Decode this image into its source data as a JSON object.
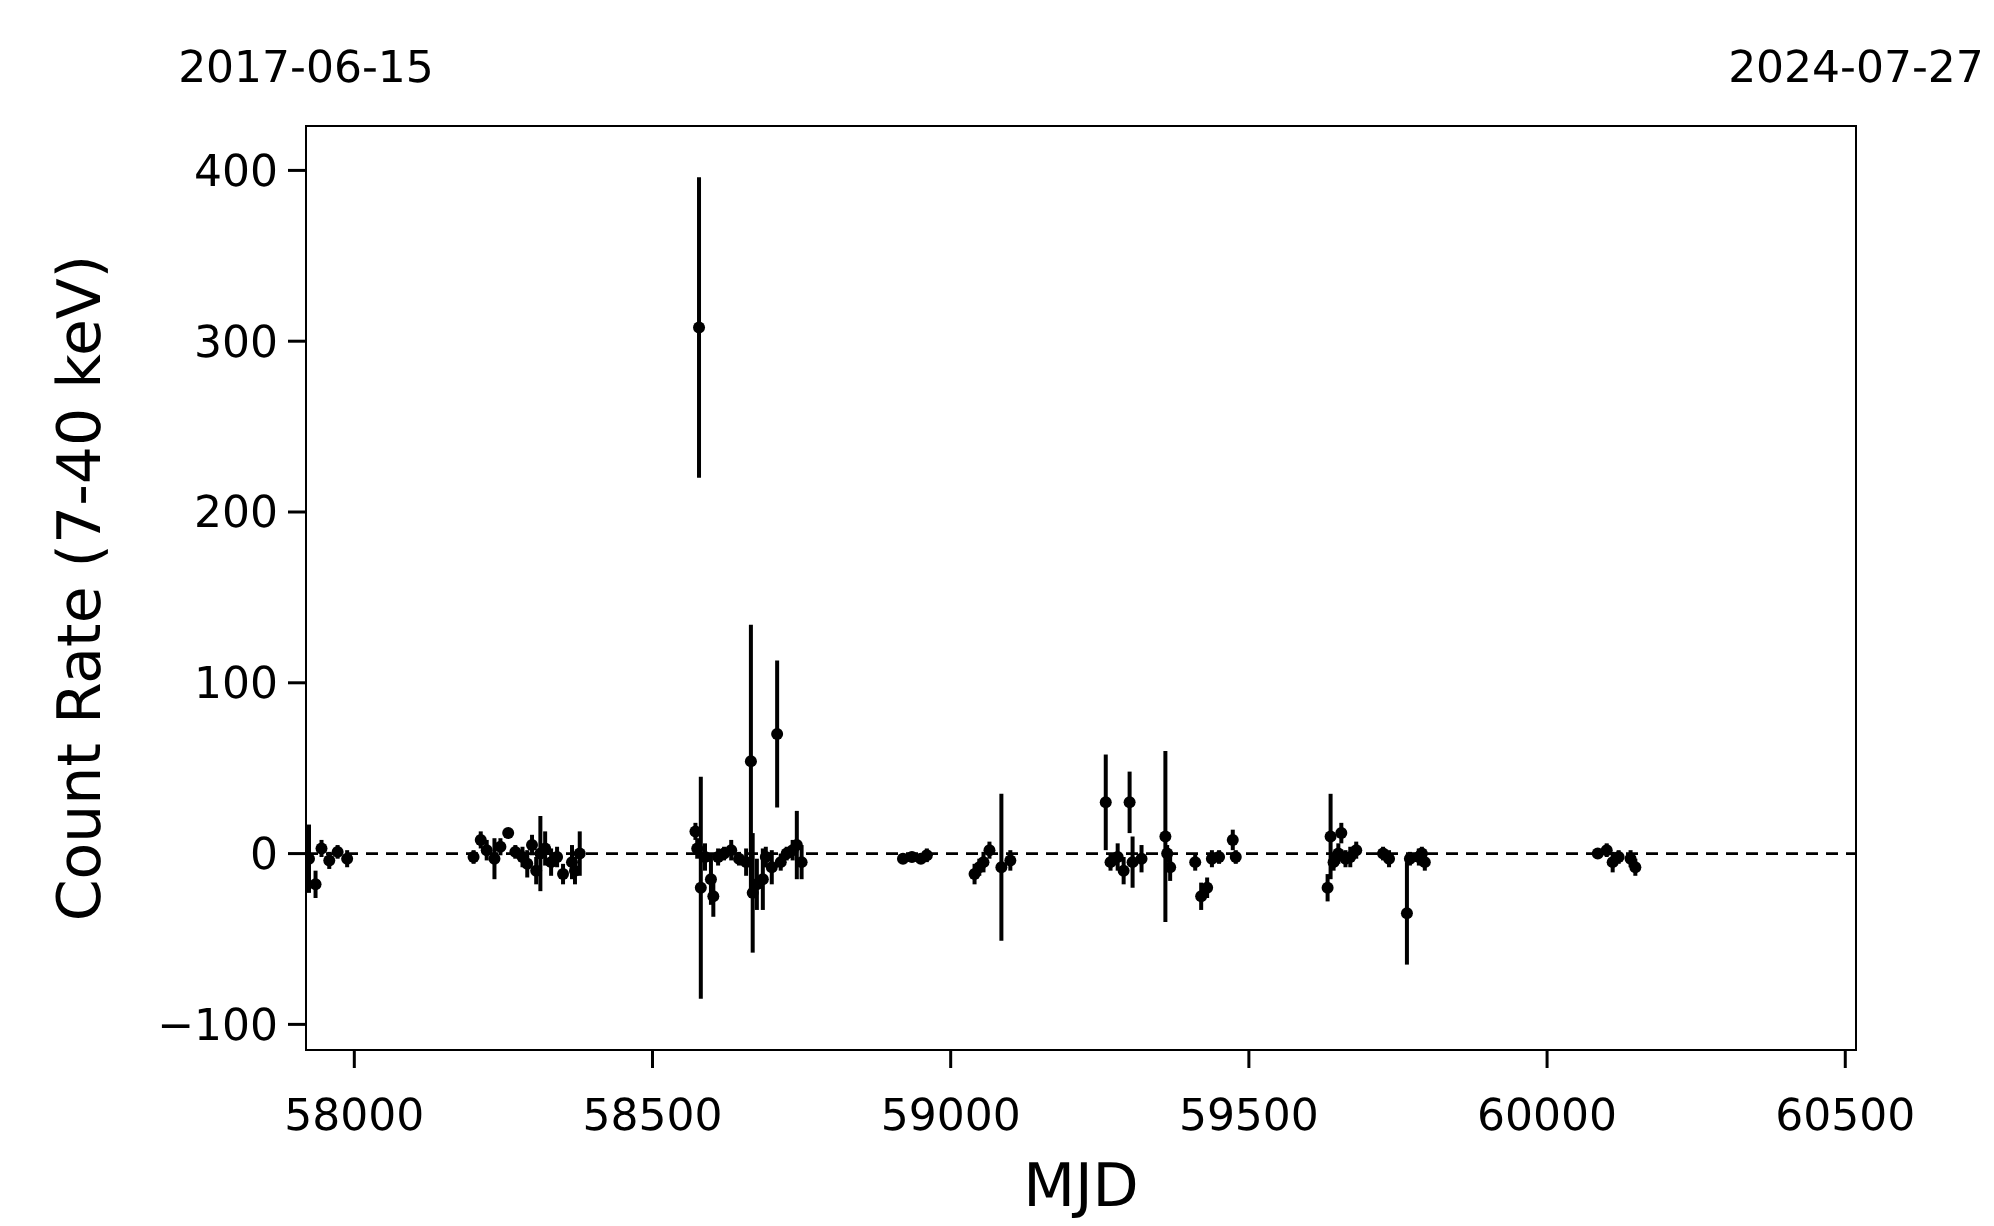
{
  "chart_data": {
    "type": "scatter",
    "xlabel": "MJD",
    "ylabel": "Count Rate (7-40 keV)",
    "xlim": [
      57919,
      60518
    ],
    "xticks": [
      58000,
      58500,
      59000,
      59500,
      60000,
      60500
    ],
    "x2lim": [
      "2017-06-15",
      "2024-07-27"
    ],
    "x2ticks": [
      "2017-06-15",
      "2024-07-27"
    ],
    "ylim": [
      -115,
      426
    ],
    "yticks": [
      {
        "value": -100,
        "label": "−100"
      },
      0,
      100,
      200,
      300,
      400
    ],
    "marker": "circle",
    "grid": false,
    "ref_lines": [
      {
        "axis": "y",
        "value": 0,
        "color": "#000000",
        "line_style": "dashed"
      }
    ],
    "x": [
      57924,
      57935,
      57945,
      57958,
      57972,
      57988,
      58200,
      58212,
      58222,
      58235,
      58245,
      58258,
      58270,
      58282,
      58290,
      58298,
      58305,
      58312,
      58320,
      58330,
      58340,
      58350,
      58365,
      58370,
      58378,
      58572,
      58575,
      58578,
      58581,
      58588,
      58598,
      58602,
      58610,
      58620,
      58632,
      58645,
      58657,
      58665,
      58668,
      58675,
      58685,
      58690,
      58700,
      58709,
      58715,
      58725,
      58735,
      58742,
      58750,
      58920,
      58935,
      58950,
      58960,
      59040,
      59048,
      59055,
      59065,
      59085,
      59100,
      59260,
      59268,
      59280,
      59300,
      59290,
      59305,
      59320,
      59360,
      59363,
      59368,
      59410,
      59420,
      59430,
      59438,
      59450,
      59473,
      59478,
      59632,
      59637,
      59642,
      59650,
      59655,
      59662,
      59670,
      59680,
      59725,
      59735,
      59765,
      59770,
      59785,
      59790,
      59795,
      60085,
      60100,
      60110,
      60120,
      60140,
      60148
    ],
    "series": [
      {
        "color": "#000000",
        "values": [
          -3,
          -18,
          3,
          -4,
          1,
          -3,
          -2,
          8,
          2,
          -3,
          4,
          12,
          1,
          -2,
          -6,
          5,
          -10,
          0,
          3,
          -5,
          -2,
          -12,
          -5,
          -10,
          0,
          13,
          3,
          308,
          -20,
          -2,
          -15,
          -25,
          -2,
          0,
          2,
          -3,
          -5,
          54,
          -23,
          -18,
          -15,
          -2,
          -8,
          70,
          -5,
          0,
          2,
          5,
          -5,
          -3,
          -2,
          -3,
          -1,
          -12,
          -8,
          -5,
          2,
          -8,
          -4,
          30,
          -5,
          -2,
          30,
          -10,
          -5,
          -3,
          10,
          0,
          -8,
          -5,
          -25,
          -20,
          -3,
          -2,
          8,
          -2,
          -20,
          10,
          -5,
          0,
          12,
          -3,
          -2,
          2,
          0,
          -3,
          -35,
          -3,
          -2,
          0,
          -5,
          0,
          2,
          -5,
          -2,
          -3,
          -8
        ],
        "errors": [
          20,
          8,
          5,
          5,
          4,
          5,
          4,
          5,
          6,
          12,
          5,
          3,
          4,
          6,
          8,
          6,
          8,
          22,
          10,
          8,
          6,
          6,
          10,
          8,
          13,
          5,
          6,
          88,
          65,
          8,
          15,
          12,
          5,
          4,
          6,
          4,
          8,
          80,
          35,
          15,
          18,
          6,
          10,
          43,
          5,
          4,
          6,
          20,
          10,
          3,
          3,
          3,
          4,
          6,
          5,
          6,
          5,
          43,
          6,
          28,
          5,
          8,
          18,
          8,
          15,
          8,
          50,
          5,
          8,
          5,
          8,
          6,
          5,
          4,
          6,
          4,
          8,
          25,
          5,
          6,
          6,
          5,
          6,
          5,
          4,
          5,
          30,
          4,
          5,
          4,
          5,
          3,
          4,
          6,
          4,
          5,
          5
        ]
      }
    ]
  }
}
